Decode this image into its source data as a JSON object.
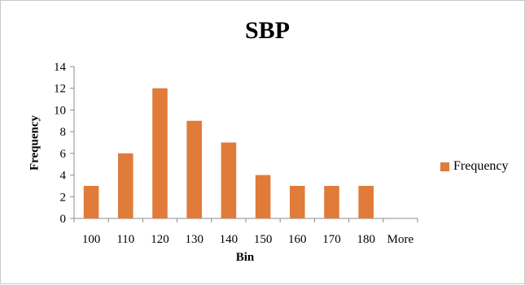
{
  "chart_data": {
    "type": "bar",
    "title": "SBP",
    "xlabel": "Bin",
    "ylabel": "Frequency",
    "categories": [
      "100",
      "110",
      "120",
      "130",
      "140",
      "150",
      "160",
      "170",
      "180",
      "More"
    ],
    "series": [
      {
        "name": "Frequency",
        "values": [
          3,
          6,
          12,
          9,
          7,
          4,
          3,
          3,
          3,
          0
        ]
      }
    ],
    "ylim": [
      0,
      14
    ],
    "yticks": [
      "0",
      "2",
      "4",
      "6",
      "8",
      "10",
      "12",
      "14"
    ],
    "grid": false,
    "legend_position": "right",
    "bar_color": "#e07b39"
  }
}
